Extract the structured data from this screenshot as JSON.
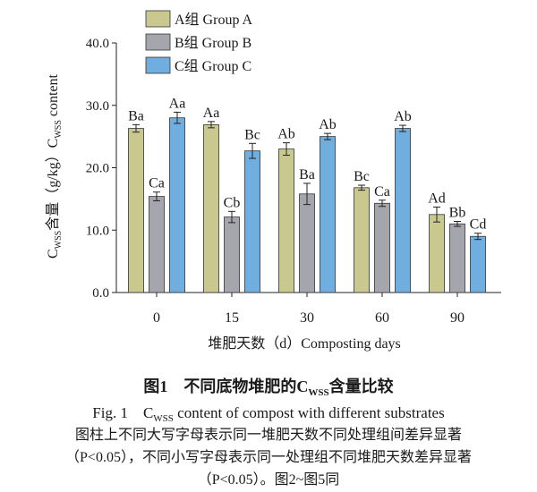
{
  "chart_data": {
    "type": "bar",
    "categories": [
      "0",
      "15",
      "30",
      "60",
      "90"
    ],
    "xlabel": "堆肥天数（d）Composting days",
    "ylabel": "Cwss含量（g/kg）Cwss content",
    "ylim": [
      0,
      40
    ],
    "yticks": [
      "0.0",
      "10.0",
      "20.0",
      "30.0",
      "40.0"
    ],
    "legend_position": "top-left",
    "series": [
      {
        "name": "A组 Group A",
        "color": "#c9c98f",
        "values": [
          26.3,
          26.9,
          23.0,
          16.8,
          12.5
        ],
        "errors": [
          0.6,
          0.5,
          1.0,
          0.4,
          1.2
        ],
        "labels": [
          "Ba",
          "Aa",
          "Ab",
          "Bc",
          "Ad"
        ]
      },
      {
        "name": "B组 Group B",
        "color": "#a5a6ad",
        "values": [
          15.4,
          12.1,
          15.8,
          14.3,
          11.0
        ],
        "errors": [
          0.7,
          0.9,
          1.7,
          0.5,
          0.4
        ],
        "labels": [
          "Ca",
          "Cb",
          "Ba",
          "Ca",
          "Bb"
        ]
      },
      {
        "name": "C组 Group C",
        "color": "#70aee0",
        "values": [
          28.0,
          22.7,
          25.0,
          26.3,
          9.0
        ],
        "errors": [
          0.9,
          1.2,
          0.5,
          0.5,
          0.5
        ],
        "labels": [
          "Aa",
          "Bc",
          "Ab",
          "Ab",
          "Cd"
        ]
      }
    ]
  },
  "caption": {
    "cn_prefix": "图1　不同底物堆肥的C",
    "cn_sub": "WSS",
    "cn_suffix": "含量比较",
    "en_prefix": "Fig. 1　C",
    "en_sub": "WSS",
    "en_suffix": " content of compost with different substrates",
    "note_line1": "图柱上不同大写字母表示同一堆肥天数不同处理组间差异显著",
    "note_line2": "（P<0.05），不同小写字母表示同一处理组不同堆肥天数差异显著",
    "note_line3": "（P<0.05）。图2~图5同"
  }
}
